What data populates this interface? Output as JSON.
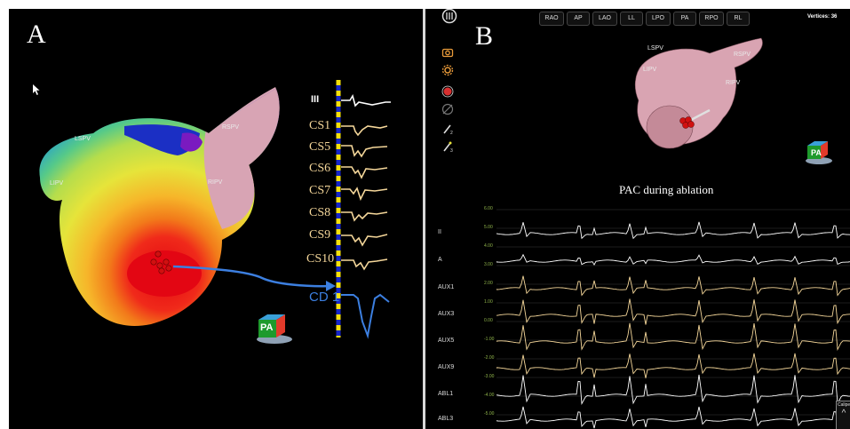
{
  "panel_a": {
    "label": "A",
    "anatomy": {
      "lspv": "LSPV",
      "lipv": "LIPV",
      "rspv": "RSPV",
      "ripv": "RIPV"
    },
    "signals": [
      "III",
      "CS1",
      "CS5",
      "CS6",
      "CS7",
      "CS8",
      "CS9",
      "CS10",
      "CD 1"
    ],
    "orientation": "PA"
  },
  "panel_b": {
    "label": "B",
    "view_buttons": [
      "RAO",
      "AP",
      "LAO",
      "LL",
      "LPO",
      "PA",
      "RPO",
      "RL"
    ],
    "vertices_label": "Vertices:",
    "vertices_value": "36",
    "anatomy": {
      "lspv": "LSPV",
      "lipv": "LIPV",
      "rspv": "RSPV",
      "ripv": "RIPV"
    },
    "orientation": "PA",
    "tracing_title": "PAC during ablation",
    "channels": [
      "II",
      "A",
      "AUX1",
      "AUX3",
      "AUX5",
      "AUX9",
      "ABL1",
      "ABL3"
    ],
    "y_ticks": [
      "6.00",
      "5.00",
      "4.00",
      "3.00",
      "2.00",
      "1.00",
      "0.00",
      "-1.00",
      "-2.00",
      "-3.00",
      "-4.00",
      "-5.00"
    ],
    "caliper_label": "Calipe"
  }
}
